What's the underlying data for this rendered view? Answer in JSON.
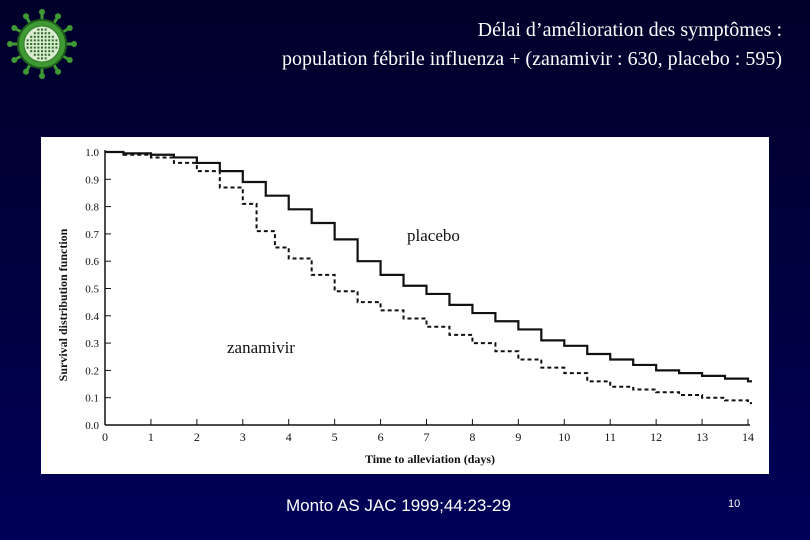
{
  "slide": {
    "title_line1": "Délai d’amélioration des symptômes :",
    "title_line2": "population fébrile influenza + (zanamivir : 630, placebo : 595)",
    "citation": "Monto AS JAC 1999;44:23-29",
    "slide_number": "10",
    "logo_icon": "virus-icon"
  },
  "colors": {
    "background": "#000040",
    "title_text": "#ffffff",
    "chart_background": "#ffffff",
    "chart_ink": "#111111",
    "logo_green": "#4caf3c"
  },
  "chart_data": {
    "type": "line",
    "xlabel": "Time to alleviation (days)",
    "ylabel": "Survival distribution function",
    "xlim": [
      0,
      14
    ],
    "ylim": [
      0,
      1.0
    ],
    "x_ticks": [
      "0",
      "1",
      "2",
      "3",
      "4",
      "5",
      "6",
      "7",
      "8",
      "9",
      "10",
      "11",
      "12",
      "13",
      "14"
    ],
    "y_ticks": [
      "0.0",
      "0.1",
      "0.2",
      "0.3",
      "0.4",
      "0.5",
      "0.6",
      "0.7",
      "0.8",
      "0.9",
      "1.0"
    ],
    "grid": false,
    "series": [
      {
        "name": "placebo",
        "style": "solid",
        "points": [
          [
            0,
            1.0
          ],
          [
            0.4,
            0.995
          ],
          [
            1,
            0.99
          ],
          [
            1.5,
            0.98
          ],
          [
            2,
            0.96
          ],
          [
            2.5,
            0.93
          ],
          [
            3,
            0.89
          ],
          [
            3.5,
            0.84
          ],
          [
            4,
            0.79
          ],
          [
            4.5,
            0.74
          ],
          [
            5,
            0.68
          ],
          [
            5.5,
            0.6
          ],
          [
            6,
            0.55
          ],
          [
            6.5,
            0.51
          ],
          [
            7,
            0.48
          ],
          [
            7.5,
            0.44
          ],
          [
            8,
            0.41
          ],
          [
            8.5,
            0.38
          ],
          [
            9,
            0.35
          ],
          [
            9.5,
            0.31
          ],
          [
            10,
            0.29
          ],
          [
            10.5,
            0.26
          ],
          [
            11,
            0.24
          ],
          [
            11.5,
            0.22
          ],
          [
            12,
            0.2
          ],
          [
            12.5,
            0.19
          ],
          [
            13,
            0.18
          ],
          [
            13.5,
            0.17
          ],
          [
            14,
            0.16
          ]
        ]
      },
      {
        "name": "zanamivir",
        "style": "dashed",
        "points": [
          [
            0,
            1.0
          ],
          [
            0.4,
            0.99
          ],
          [
            1,
            0.98
          ],
          [
            1.5,
            0.96
          ],
          [
            2,
            0.93
          ],
          [
            2.5,
            0.87
          ],
          [
            3,
            0.81
          ],
          [
            3.3,
            0.71
          ],
          [
            3.7,
            0.65
          ],
          [
            4,
            0.61
          ],
          [
            4.5,
            0.55
          ],
          [
            5,
            0.49
          ],
          [
            5.5,
            0.45
          ],
          [
            6,
            0.42
          ],
          [
            6.5,
            0.39
          ],
          [
            7,
            0.36
          ],
          [
            7.5,
            0.33
          ],
          [
            8,
            0.3
          ],
          [
            8.5,
            0.27
          ],
          [
            9,
            0.24
          ],
          [
            9.5,
            0.21
          ],
          [
            10,
            0.19
          ],
          [
            10.5,
            0.16
          ],
          [
            11,
            0.14
          ],
          [
            11.5,
            0.13
          ],
          [
            12,
            0.12
          ],
          [
            12.5,
            0.11
          ],
          [
            13,
            0.1
          ],
          [
            13.5,
            0.09
          ],
          [
            14,
            0.08
          ]
        ]
      }
    ],
    "annotations": [
      {
        "text": "placebo",
        "near": "placebo curve, upper middle"
      },
      {
        "text": "zanamivir",
        "near": "zanamivir curve, lower left"
      }
    ]
  }
}
